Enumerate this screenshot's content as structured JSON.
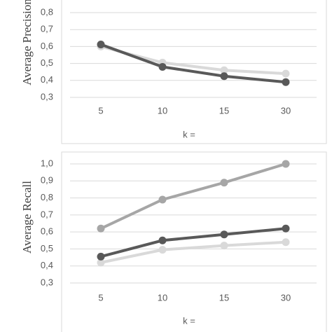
{
  "chart_data": [
    {
      "type": "line",
      "y_label": "Average Precision",
      "x_label": "k =",
      "categories": [
        "5",
        "10",
        "15",
        "30"
      ],
      "ylim": [
        0.3,
        0.8
      ],
      "yticks": [
        {
          "value": 0.3,
          "label": "0,3"
        },
        {
          "value": 0.4,
          "label": "0,4"
        },
        {
          "value": 0.5,
          "label": "0,5"
        },
        {
          "value": 0.6,
          "label": "0,6"
        },
        {
          "value": 0.7,
          "label": "0,7"
        },
        {
          "value": 0.8,
          "label": "0,8"
        }
      ],
      "grid": true,
      "series": [
        {
          "color": "#d9d9d9",
          "values": [
            0.6,
            0.505,
            0.46,
            0.44
          ]
        },
        {
          "color": "#595959",
          "values": [
            0.612,
            0.48,
            0.425,
            0.39
          ]
        }
      ]
    },
    {
      "type": "line",
      "y_label": "Average Recall",
      "x_label": "k =",
      "categories": [
        "5",
        "10",
        "15",
        "30"
      ],
      "ylim": [
        0.3,
        1.0
      ],
      "yticks": [
        {
          "value": 0.3,
          "label": "0,3"
        },
        {
          "value": 0.4,
          "label": "0,4"
        },
        {
          "value": 0.5,
          "label": "0,5"
        },
        {
          "value": 0.6,
          "label": "0,6"
        },
        {
          "value": 0.7,
          "label": "0,7"
        },
        {
          "value": 0.8,
          "label": "0,8"
        },
        {
          "value": 0.9,
          "label": "0,9"
        },
        {
          "value": 1.0,
          "label": "1,0"
        }
      ],
      "grid": true,
      "series": [
        {
          "color": "#a6a6a6",
          "values": [
            0.62,
            0.79,
            0.89,
            1.0
          ]
        },
        {
          "color": "#d9d9d9",
          "values": [
            0.42,
            0.495,
            0.52,
            0.54
          ]
        },
        {
          "color": "#595959",
          "values": [
            0.455,
            0.55,
            0.585,
            0.62
          ]
        }
      ]
    }
  ]
}
